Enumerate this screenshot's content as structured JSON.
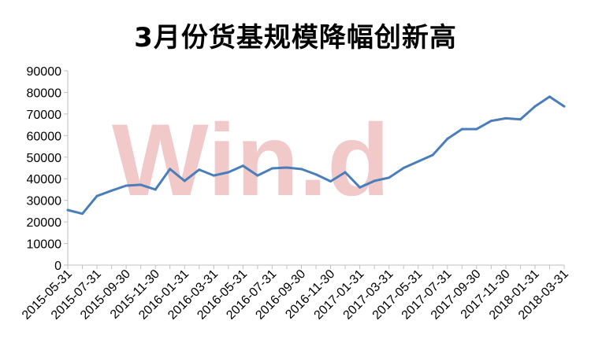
{
  "chart_data": {
    "type": "line",
    "title": "3月份货基规模降幅创新高",
    "watermark": "Win.d",
    "xlabel": "",
    "ylabel": "",
    "ylim": [
      0,
      90000
    ],
    "yticks": [
      0,
      10000,
      20000,
      30000,
      40000,
      50000,
      60000,
      70000,
      80000,
      90000
    ],
    "x": [
      "2015-05-31",
      "2015-06-30",
      "2015-07-31",
      "2015-08-31",
      "2015-09-30",
      "2015-10-31",
      "2015-11-30",
      "2015-12-31",
      "2016-01-31",
      "2016-02-29",
      "2016-03-31",
      "2016-04-30",
      "2016-05-31",
      "2016-06-30",
      "2016-07-31",
      "2016-08-31",
      "2016-09-30",
      "2016-10-31",
      "2016-11-30",
      "2016-12-31",
      "2017-01-31",
      "2017-02-28",
      "2017-03-31",
      "2017-04-30",
      "2017-05-31",
      "2017-06-30",
      "2017-07-31",
      "2017-08-31",
      "2017-09-30",
      "2017-10-31",
      "2017-11-30",
      "2017-12-31",
      "2018-01-31",
      "2018-02-28",
      "2018-03-31"
    ],
    "xtick_labels": [
      "2015-05-31",
      "2015-07-31",
      "2015-09-30",
      "2015-11-30",
      "2016-01-31",
      "2016-03-31",
      "2016-05-31",
      "2016-07-31",
      "2016-09-30",
      "2016-11-30",
      "2017-01-31",
      "2017-03-31",
      "2017-05-31",
      "2017-07-31",
      "2017-09-30",
      "2017-11-30",
      "2018-01-31",
      "2018-03-31"
    ],
    "series": [
      {
        "values": [
          25500,
          23800,
          32000,
          34500,
          36800,
          37200,
          35000,
          44500,
          39000,
          44200,
          41500,
          43000,
          46000,
          41500,
          44800,
          45200,
          44500,
          42000,
          38800,
          43000,
          36000,
          39000,
          40500,
          45000,
          48000,
          51000,
          58500,
          63000,
          63000,
          66800,
          68000,
          67500,
          73500,
          78000,
          73500
        ]
      }
    ],
    "line_color": "#4a7ebb",
    "grid": false
  }
}
